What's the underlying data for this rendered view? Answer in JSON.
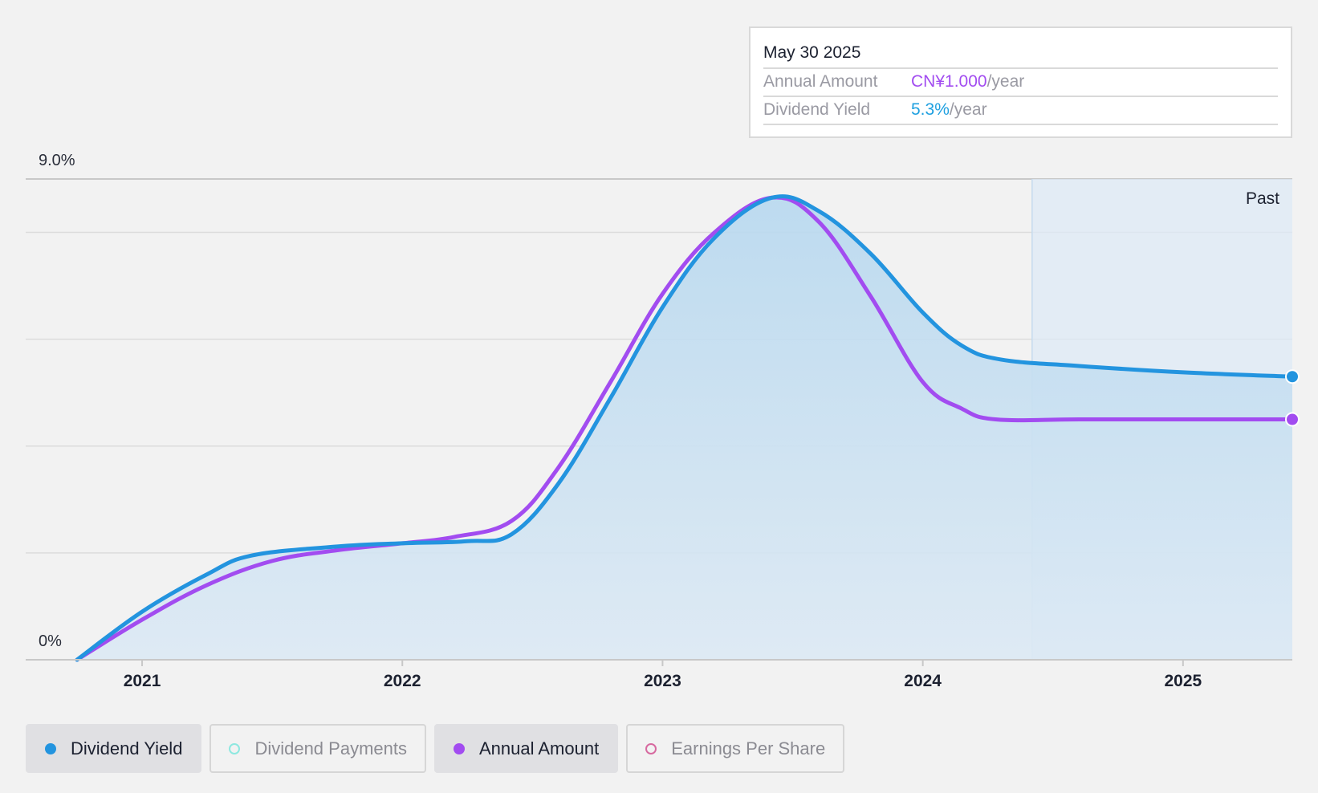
{
  "tooltip": {
    "date": "May 30 2025",
    "annual_label": "Annual Amount",
    "annual_value": "CN¥1.000",
    "annual_unit": "/year",
    "yield_label": "Dividend Yield",
    "yield_value": "5.3%",
    "yield_unit": "/year"
  },
  "legend": [
    {
      "label": "Dividend Yield",
      "active": true,
      "color": "#2394df"
    },
    {
      "label": "Dividend Payments",
      "active": false,
      "color": "#8ee8e0"
    },
    {
      "label": "Annual Amount",
      "active": true,
      "color": "#a24cf0"
    },
    {
      "label": "Earnings Per Share",
      "active": false,
      "color": "#d76aa0"
    }
  ],
  "chart_data": {
    "type": "line",
    "y_top_label": "9.0%",
    "y_bottom_label": "0%",
    "ylim": [
      0,
      9.0
    ],
    "xlim": [
      2020.75,
      2025.42
    ],
    "x_ticks": [
      2021,
      2022,
      2023,
      2024,
      2025
    ],
    "x_tick_labels": [
      "2021",
      "2022",
      "2023",
      "2024",
      "2025"
    ],
    "past_label": "Past",
    "past_start": 2024.42,
    "grid": true,
    "series": [
      {
        "name": "Dividend Yield",
        "color": "#2394df",
        "points": [
          [
            2020.75,
            0.0
          ],
          [
            2021.0,
            0.9
          ],
          [
            2021.25,
            1.6
          ],
          [
            2021.42,
            1.95
          ],
          [
            2021.75,
            2.12
          ],
          [
            2022.0,
            2.18
          ],
          [
            2022.25,
            2.22
          ],
          [
            2022.42,
            2.35
          ],
          [
            2022.6,
            3.3
          ],
          [
            2022.8,
            4.9
          ],
          [
            2023.0,
            6.6
          ],
          [
            2023.2,
            7.9
          ],
          [
            2023.42,
            8.65
          ],
          [
            2023.6,
            8.4
          ],
          [
            2023.8,
            7.6
          ],
          [
            2024.0,
            6.5
          ],
          [
            2024.15,
            5.88
          ],
          [
            2024.3,
            5.62
          ],
          [
            2024.6,
            5.5
          ],
          [
            2025.0,
            5.38
          ],
          [
            2025.42,
            5.3
          ]
        ]
      },
      {
        "name": "Annual Amount",
        "color": "#a24cf0",
        "points": [
          [
            2020.75,
            0.0
          ],
          [
            2021.0,
            0.75
          ],
          [
            2021.25,
            1.4
          ],
          [
            2021.5,
            1.85
          ],
          [
            2021.75,
            2.05
          ],
          [
            2022.0,
            2.18
          ],
          [
            2022.2,
            2.3
          ],
          [
            2022.42,
            2.6
          ],
          [
            2022.6,
            3.6
          ],
          [
            2022.8,
            5.2
          ],
          [
            2023.0,
            6.85
          ],
          [
            2023.2,
            8.0
          ],
          [
            2023.42,
            8.65
          ],
          [
            2023.6,
            8.2
          ],
          [
            2023.8,
            6.8
          ],
          [
            2024.0,
            5.2
          ],
          [
            2024.15,
            4.7
          ],
          [
            2024.28,
            4.5
          ],
          [
            2024.6,
            4.5
          ],
          [
            2025.0,
            4.5
          ],
          [
            2025.42,
            4.5
          ]
        ]
      }
    ]
  }
}
